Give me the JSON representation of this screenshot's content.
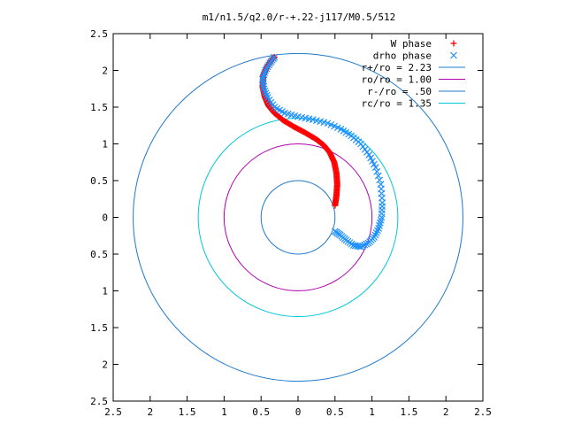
{
  "chart_data": {
    "type": "scatter",
    "title": "m1/n1.5/q2.0/r-+.22-j117/M0.5/512",
    "xlabel": "",
    "ylabel": "",
    "xlim": [
      -2.5,
      2.5
    ],
    "ylim": [
      -2.5,
      2.5
    ],
    "x_ticks": [
      "2.5",
      "2",
      "1.5",
      "1",
      "0.5",
      "0",
      "0.5",
      "1",
      "1.5",
      "2",
      "2.5"
    ],
    "y_ticks": [
      "2.5",
      "2",
      "1.5",
      "1",
      "0.5",
      "0",
      "0.5",
      "1",
      "1.5",
      "2",
      "2.5"
    ],
    "grid": false,
    "legend_position": "top-right",
    "series": [
      {
        "name": "W phase",
        "kind": "points",
        "marker": "+",
        "color": "#ff0000",
        "points": [
          [
            0.5,
            0.16
          ],
          [
            0.52,
            0.3
          ],
          [
            0.53,
            0.45
          ],
          [
            0.52,
            0.6
          ],
          [
            0.49,
            0.75
          ],
          [
            0.43,
            0.88
          ],
          [
            0.35,
            0.98
          ],
          [
            0.25,
            1.06
          ],
          [
            0.1,
            1.15
          ],
          [
            -0.05,
            1.23
          ],
          [
            -0.2,
            1.32
          ],
          [
            -0.32,
            1.42
          ],
          [
            -0.4,
            1.52
          ],
          [
            -0.45,
            1.64
          ],
          [
            -0.48,
            1.78
          ],
          [
            -0.47,
            1.93
          ],
          [
            -0.42,
            2.05
          ],
          [
            -0.36,
            2.14
          ],
          [
            -0.32,
            2.18
          ]
        ]
      },
      {
        "name": "drho phase",
        "kind": "points",
        "marker": "x",
        "color": "#1e90ff",
        "points": [
          [
            -0.32,
            2.18
          ],
          [
            -0.38,
            2.1
          ],
          [
            -0.44,
            2.0
          ],
          [
            -0.48,
            1.88
          ],
          [
            -0.46,
            1.75
          ],
          [
            -0.41,
            1.63
          ],
          [
            -0.32,
            1.5
          ],
          [
            -0.18,
            1.42
          ],
          [
            0.0,
            1.37
          ],
          [
            0.2,
            1.33
          ],
          [
            0.4,
            1.28
          ],
          [
            0.58,
            1.2
          ],
          [
            0.72,
            1.11
          ],
          [
            0.85,
            1.0
          ],
          [
            0.96,
            0.85
          ],
          [
            1.05,
            0.68
          ],
          [
            1.12,
            0.45
          ],
          [
            1.14,
            0.2
          ],
          [
            1.13,
            0.0
          ],
          [
            1.09,
            -0.15
          ],
          [
            1.03,
            -0.27
          ],
          [
            0.95,
            -0.35
          ],
          [
            0.85,
            -0.4
          ],
          [
            0.75,
            -0.38
          ],
          [
            0.65,
            -0.31
          ],
          [
            0.57,
            -0.24
          ],
          [
            0.5,
            -0.19
          ]
        ]
      },
      {
        "name": "r+/ro = 2.23",
        "kind": "circle",
        "radius": 2.23,
        "color": "#1f78c8"
      },
      {
        "name": "ro/ro = 1.00",
        "kind": "circle",
        "radius": 1.0,
        "color": "#b000b0"
      },
      {
        "name": "r-/ro = .50",
        "kind": "circle",
        "radius": 0.5,
        "color": "#1f78c8"
      },
      {
        "name": "rc/ro = 1.35",
        "kind": "circle",
        "radius": 1.35,
        "color": "#00c8d8"
      }
    ]
  }
}
